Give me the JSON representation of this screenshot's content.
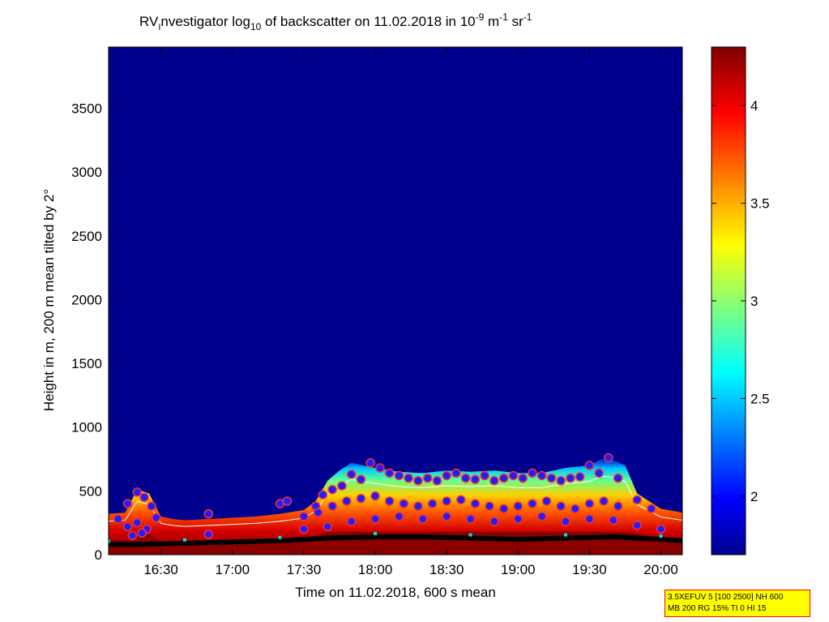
{
  "figure": {
    "title": {
      "prefix": "RV",
      "prefix_sub": "I",
      "part1": "nvestigator log",
      "sub10": "10",
      "part2": " of backscatter on 11.02.2018 in 10",
      "sup1": "-9",
      "part3": " m",
      "sup2": "-1",
      "part4": " sr",
      "sup3": "-1"
    },
    "info_box": {
      "line1": "3.5XEFUV 5 [100 2500] NH 600",
      "line2": "MB 200 RG 15% TI 0 HI 15"
    }
  },
  "chart_data": {
    "type": "heatmap",
    "title": "RV Investigator log10 of backscatter on 11.02.2018 in 10^-9 m^-1 sr^-1",
    "xlabel": "Time on 11.02.2018, 600 s mean",
    "ylabel": "Height in m, 200 m mean tilted by 2°",
    "xlim": [
      "16:08",
      "20:09"
    ],
    "ylim": [
      0,
      3980
    ],
    "x_ticks": [
      "16:30",
      "17:00",
      "17:30",
      "18:00",
      "18:30",
      "19:00",
      "19:30",
      "20:00"
    ],
    "x_tick_minutes": [
      990,
      1020,
      1050,
      1080,
      1110,
      1140,
      1170,
      1200
    ],
    "x_range_minutes": [
      968,
      1209
    ],
    "y_ticks": [
      0,
      500,
      1000,
      1500,
      2000,
      2500,
      3000,
      3500
    ],
    "colorbar": {
      "range": [
        1.7,
        4.3
      ],
      "ticks": [
        "2",
        "2.5",
        "3",
        "3.5",
        "4"
      ],
      "tick_values": [
        2,
        2.5,
        3,
        3.5,
        4
      ],
      "colormap": "jet"
    },
    "aerosol_layer_top_m": {
      "time_minutes": [
        968,
        975,
        980,
        985,
        990,
        995,
        1000,
        1010,
        1020,
        1030,
        1040,
        1050,
        1055,
        1060,
        1065,
        1070,
        1075,
        1080,
        1090,
        1100,
        1110,
        1120,
        1130,
        1140,
        1150,
        1160,
        1170,
        1175,
        1180,
        1185,
        1190,
        1200,
        1209
      ],
      "height_m": [
        320,
        330,
        510,
        480,
        300,
        280,
        270,
        280,
        290,
        300,
        320,
        350,
        420,
        580,
        660,
        720,
        700,
        680,
        650,
        640,
        660,
        650,
        660,
        640,
        640,
        680,
        700,
        750,
        740,
        700,
        480,
        360,
        330
      ]
    },
    "detected_layers_series": [
      {
        "time_minutes": [
          972,
          976,
          980,
          983,
          986,
          988,
          1010,
          1040,
          1043,
          1055,
          1058,
          1062,
          1066,
          1070,
          1074,
          1078,
          1082,
          1086,
          1090,
          1094,
          1098,
          1102,
          1106,
          1110,
          1114,
          1118,
          1122,
          1126,
          1130,
          1134,
          1138,
          1142,
          1146,
          1150,
          1154,
          1158,
          1162,
          1166,
          1170,
          1174,
          1178,
          1182,
          1190,
          1196
        ],
        "height_m": [
          280,
          400,
          490,
          450,
          380,
          290,
          320,
          400,
          420,
          380,
          470,
          510,
          540,
          630,
          590,
          720,
          680,
          640,
          620,
          600,
          580,
          600,
          580,
          620,
          640,
          600,
          590,
          620,
          580,
          600,
          620,
          600,
          640,
          620,
          600,
          580,
          600,
          610,
          700,
          640,
          760,
          600,
          430,
          360
        ]
      },
      {
        "time_minutes": [
          976,
          980,
          984,
          1050,
          1056,
          1062,
          1068,
          1074,
          1080,
          1086,
          1092,
          1098,
          1104,
          1110,
          1116,
          1122,
          1128,
          1134,
          1140,
          1146,
          1152,
          1158,
          1164,
          1170,
          1176,
          1182
        ],
        "height_m": [
          220,
          250,
          200,
          300,
          330,
          380,
          420,
          440,
          460,
          420,
          400,
          380,
          400,
          420,
          430,
          400,
          380,
          360,
          380,
          400,
          420,
          380,
          360,
          400,
          420,
          380
        ]
      },
      {
        "time_minutes": [
          978,
          982,
          1010,
          1050,
          1060,
          1070,
          1080,
          1090,
          1100,
          1110,
          1120,
          1130,
          1140,
          1150,
          1160,
          1170,
          1180,
          1190,
          1200
        ],
        "height_m": [
          150,
          170,
          160,
          200,
          220,
          260,
          280,
          300,
          280,
          300,
          280,
          260,
          280,
          300,
          260,
          280,
          270,
          230,
          200
        ]
      }
    ],
    "cloud_base_series": {
      "time_minutes": [
        968,
        980,
        1000,
        1020,
        1040,
        1060,
        1080,
        1100,
        1120,
        1140,
        1160,
        1180,
        1200,
        1209
      ],
      "height_m": [
        80,
        80,
        90,
        100,
        110,
        130,
        140,
        140,
        130,
        120,
        130,
        140,
        120,
        110
      ]
    }
  }
}
